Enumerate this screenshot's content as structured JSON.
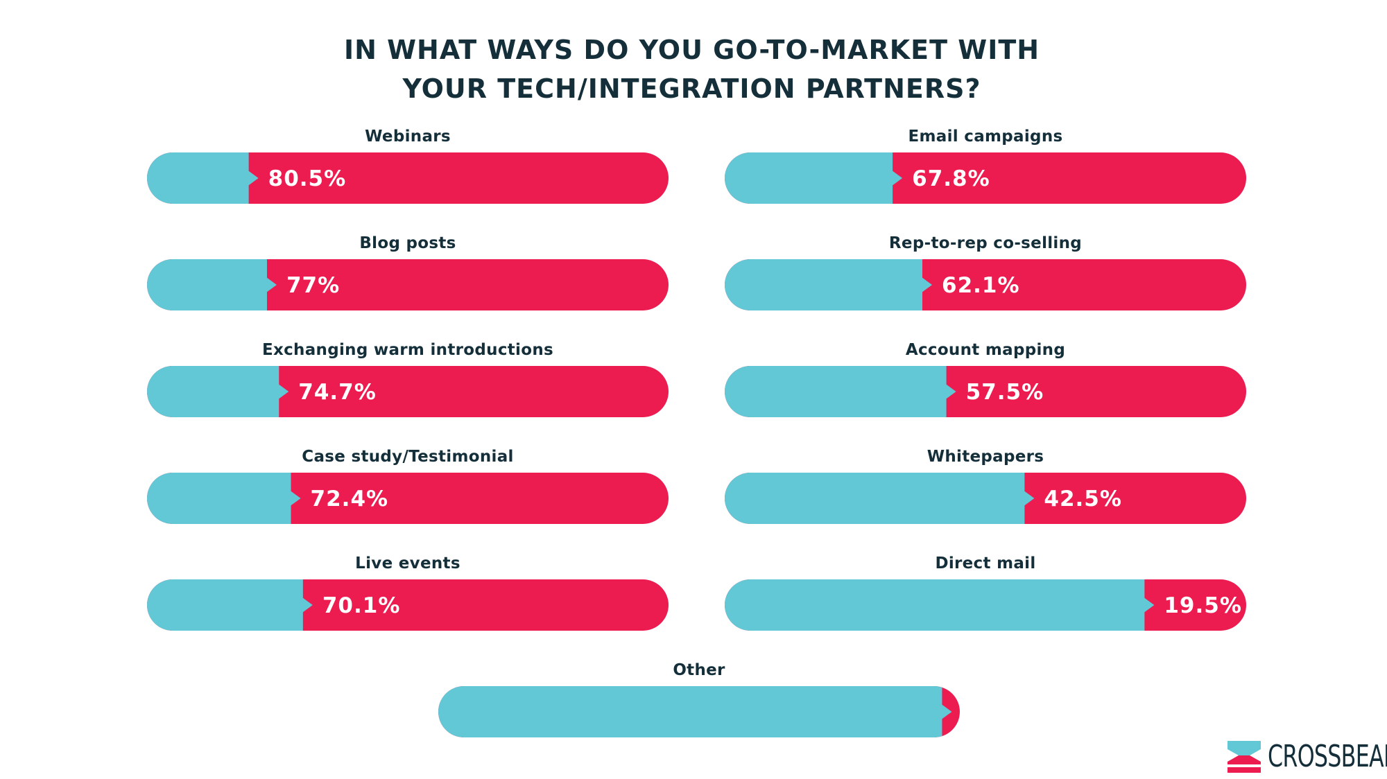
{
  "title_lines": [
    "IN WHAT WAYS DO YOU GO-TO-MARKET WITH",
    "YOUR TECH/INTEGRATION PARTNERS?"
  ],
  "colors": {
    "remainder": "#63c8d6",
    "value": "#ec1c50",
    "text": "#142f3a"
  },
  "chart_data": {
    "type": "bar",
    "title": "IN WHAT WAYS DO YOU GO-TO-MARKET WITH YOUR TECH/INTEGRATION PARTNERS?",
    "xlim": [
      0,
      100
    ],
    "items": [
      {
        "category": "Webinars",
        "value": 80.5,
        "label": "80.5%"
      },
      {
        "category": "Blog posts",
        "value": 77,
        "label": "77%"
      },
      {
        "category": "Exchanging warm introductions",
        "value": 74.7,
        "label": "74.7%"
      },
      {
        "category": "Case study/Testimonial",
        "value": 72.4,
        "label": "72.4%"
      },
      {
        "category": "Live events",
        "value": 70.1,
        "label": "70.1%"
      },
      {
        "category": "Email campaigns",
        "value": 67.8,
        "label": "67.8%"
      },
      {
        "category": "Rep-to-rep co-selling",
        "value": 62.1,
        "label": "62.1%"
      },
      {
        "category": "Account mapping",
        "value": 57.5,
        "label": "57.5%"
      },
      {
        "category": "Whitepapers",
        "value": 42.5,
        "label": "42.5%"
      },
      {
        "category": "Direct mail",
        "value": 19.5,
        "label": "19.5%"
      },
      {
        "category": "Other",
        "value": 3.4,
        "label": "3.4%"
      }
    ]
  },
  "brand": {
    "name": "CROSSBEAM"
  }
}
